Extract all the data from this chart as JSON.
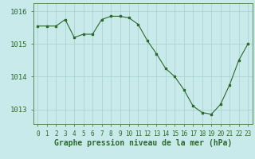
{
  "x": [
    0,
    1,
    2,
    3,
    4,
    5,
    6,
    7,
    8,
    9,
    10,
    11,
    12,
    13,
    14,
    15,
    16,
    17,
    18,
    19,
    20,
    21,
    22,
    23
  ],
  "y": [
    1015.55,
    1015.55,
    1015.55,
    1015.75,
    1015.2,
    1015.3,
    1015.3,
    1015.75,
    1015.85,
    1015.85,
    1015.8,
    1015.6,
    1015.1,
    1014.7,
    1014.25,
    1014.0,
    1013.6,
    1013.1,
    1012.9,
    1012.85,
    1013.15,
    1013.75,
    1014.5,
    1015.0
  ],
  "line_color": "#2d6a2d",
  "marker": "s",
  "marker_size": 2,
  "background_color": "#c8eaea",
  "grid_color": "#a8cece",
  "axis_color": "#5a8a5a",
  "tick_color": "#2d6a2d",
  "xlabel": "Graphe pression niveau de la mer (hPa)",
  "xlabel_color": "#2d6a2d",
  "xlabel_fontsize": 7,
  "ytick_labels": [
    "1013",
    "1014",
    "1015",
    "1016"
  ],
  "ytick_values": [
    1013,
    1014,
    1015,
    1016
  ],
  "ylim": [
    1012.55,
    1016.25
  ],
  "xlim": [
    -0.5,
    23.5
  ],
  "xtick_fontsize": 5.5,
  "ytick_fontsize": 6.5
}
